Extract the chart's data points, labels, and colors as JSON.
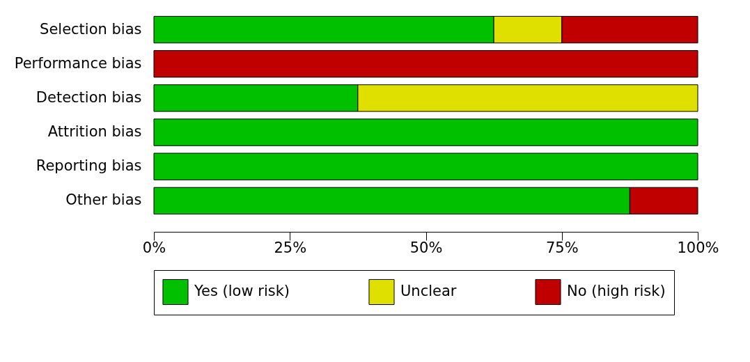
{
  "chart_data": {
    "type": "bar",
    "orientation": "horizontal",
    "stacked": true,
    "categories": [
      "Selection bias",
      "Performance bias",
      "Detection bias",
      "Attrition bias",
      "Reporting bias",
      "Other bias"
    ],
    "series": [
      {
        "name": "Yes (low risk)",
        "color": "#00c000",
        "values": [
          62.5,
          0,
          37.5,
          100,
          100,
          87.5
        ]
      },
      {
        "name": "Unclear",
        "color": "#e0e000",
        "values": [
          12.5,
          0,
          62.5,
          0,
          0,
          0
        ]
      },
      {
        "name": "No (high risk)",
        "color": "#c00000",
        "values": [
          25,
          100,
          0,
          0,
          0,
          12.5
        ]
      }
    ],
    "xlim": [
      0,
      100
    ],
    "xticks": [
      {
        "value": 0,
        "label": "0%"
      },
      {
        "value": 25,
        "label": "25%"
      },
      {
        "value": 50,
        "label": "50%"
      },
      {
        "value": 75,
        "label": "75%"
      },
      {
        "value": 100,
        "label": "100%"
      }
    ],
    "grid": false,
    "legend": "bottom"
  }
}
